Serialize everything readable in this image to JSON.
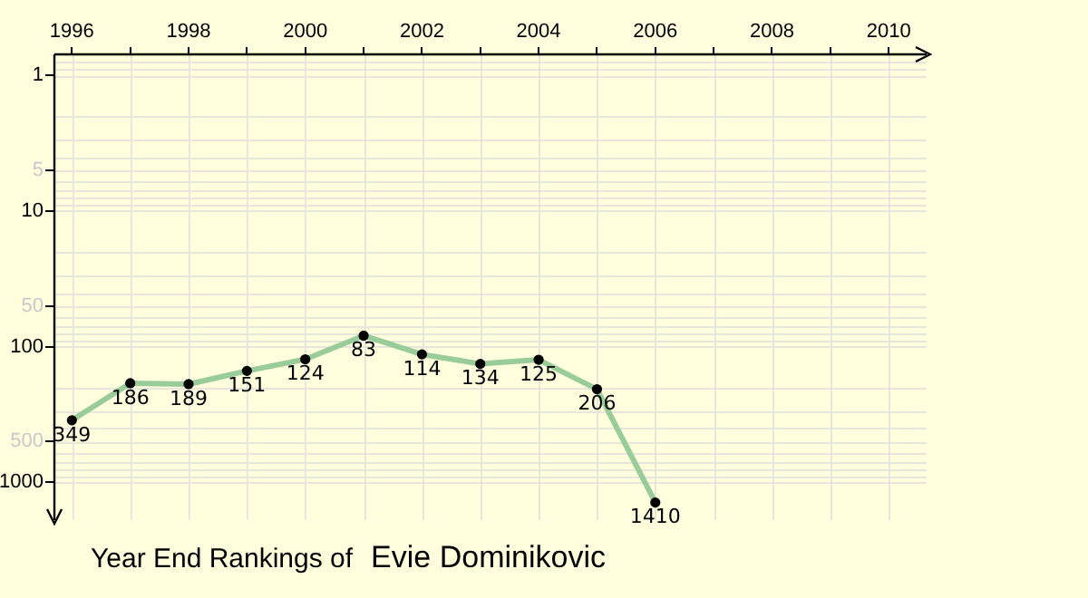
{
  "chart_data": {
    "type": "line",
    "title": "Year End Rankings of",
    "subtitle": "Evie Dominikovic",
    "x": [
      1996,
      1997,
      1998,
      1999,
      2000,
      2001,
      2002,
      2003,
      2004,
      2005,
      2006
    ],
    "series": [
      {
        "color": "#99cc99",
        "values": [
          349,
          186,
          189,
          151,
          124,
          83,
          114,
          134,
          125,
          206,
          1410
        ]
      }
    ],
    "data_labels": true,
    "marker": "circle",
    "log": "y",
    "xlim": [
      1995.7,
      2010.65
    ],
    "xticks": [
      1996,
      {
        "value": 1997,
        "label": null
      },
      1998,
      {
        "value": 1999,
        "label": null
      },
      2000,
      {
        "value": 2001,
        "label": null
      },
      2002,
      {
        "value": 2003,
        "label": null
      },
      2004,
      {
        "value": 2005,
        "label": null
      },
      2006,
      {
        "value": 2007,
        "label": null
      },
      2008,
      {
        "value": 2009,
        "label": null
      },
      2010
    ],
    "ylim": [
      1900,
      0.71
    ],
    "yticks": [
      1,
      5,
      10,
      50,
      100,
      500,
      1000
    ],
    "grid": true,
    "legend": false
  }
}
